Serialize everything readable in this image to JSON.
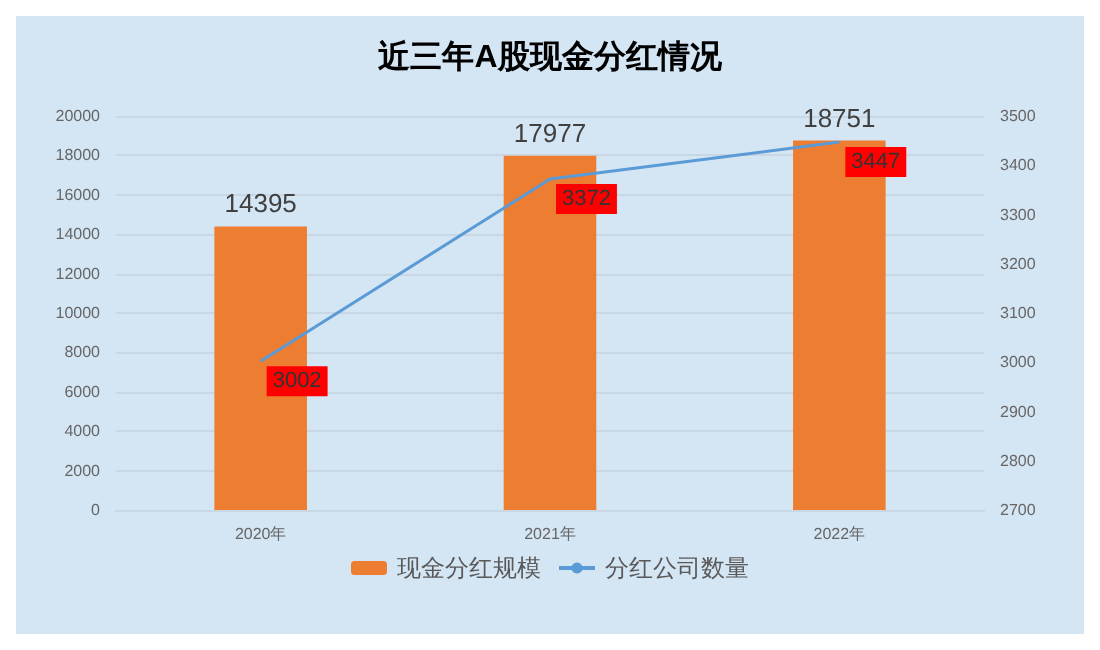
{
  "chart_data": {
    "type": "bar",
    "title": "近三年A股现金分红情况",
    "categories": [
      "2020年",
      "2021年",
      "2022年"
    ],
    "series": [
      {
        "name": "现金分红规模",
        "color": "#ed7d31",
        "values": [
          14395,
          17977,
          18751
        ]
      },
      {
        "name": "分红公司数量",
        "type": "line",
        "axis": "y2",
        "color": "#5b9bd5",
        "values": [
          3002,
          3372,
          3447
        ]
      }
    ],
    "ylim": [
      0,
      20000
    ],
    "yticks": [
      0,
      2000,
      4000,
      6000,
      8000,
      10000,
      12000,
      14000,
      16000,
      18000,
      20000
    ],
    "y2lim": [
      2700,
      3500
    ],
    "y2ticks": [
      2700,
      2800,
      2900,
      3000,
      3100,
      3200,
      3300,
      3400,
      3500
    ],
    "grid": "y",
    "legend": "bottom",
    "data_labels": true
  }
}
